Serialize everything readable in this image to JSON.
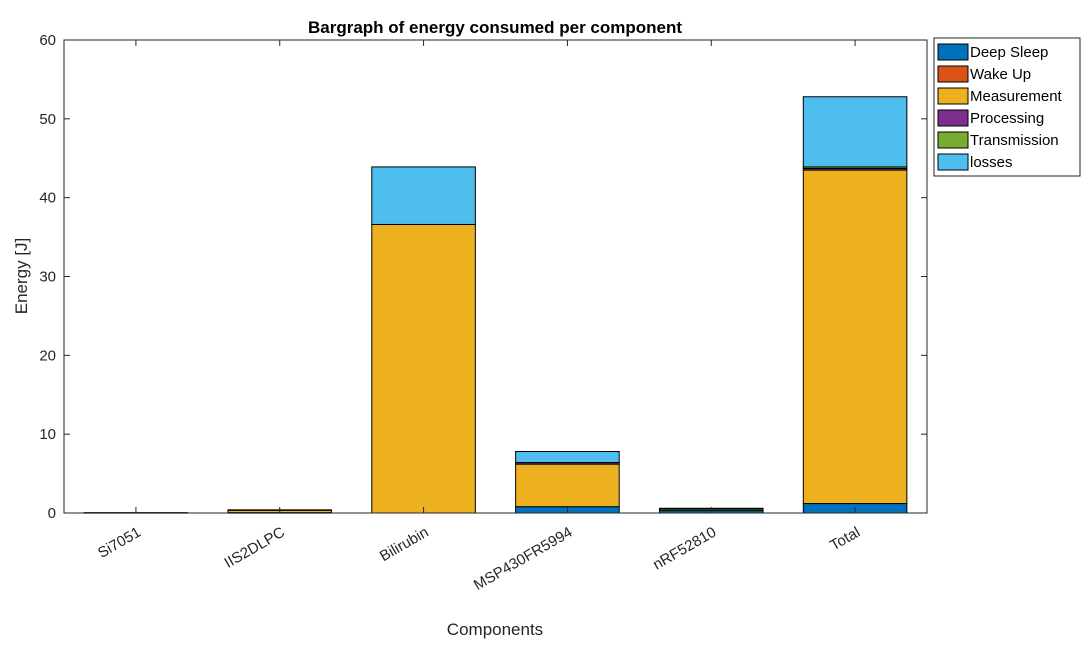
{
  "chart_data": {
    "type": "bar",
    "stacked": true,
    "title": "Bargraph of energy consumed per component",
    "xlabel": "Components",
    "ylabel": "Energy [J]",
    "ylim": [
      0,
      60
    ],
    "yticks": [
      0,
      10,
      20,
      30,
      40,
      50,
      60
    ],
    "grid": false,
    "legend_position": "outside-top-right",
    "categories": [
      "Si7051",
      "IIS2DLPC",
      "Bilirubin",
      "MSP430FR5994",
      "nRF52810",
      "Total"
    ],
    "series": [
      {
        "name": "Deep Sleep",
        "color": "#0072BD",
        "values": [
          0.05,
          0.05,
          0.0,
          0.8,
          0.3,
          1.2
        ]
      },
      {
        "name": "Wake Up",
        "color": "#D95319",
        "values": [
          0.0,
          0.0,
          0.0,
          0.0,
          0.0,
          0.0
        ]
      },
      {
        "name": "Measurement",
        "color": "#EDB120",
        "values": [
          0.0,
          0.3,
          36.6,
          5.4,
          0.0,
          42.3
        ]
      },
      {
        "name": "Processing",
        "color": "#7E2F8E",
        "values": [
          0.0,
          0.0,
          0.0,
          0.2,
          0.0,
          0.2
        ]
      },
      {
        "name": "Transmission",
        "color": "#77AC30",
        "values": [
          0.0,
          0.0,
          0.0,
          0.0,
          0.2,
          0.2
        ]
      },
      {
        "name": "losses",
        "color": "#4DBEEE",
        "values": [
          0.0,
          0.05,
          7.3,
          1.4,
          0.1,
          8.9
        ]
      }
    ]
  }
}
